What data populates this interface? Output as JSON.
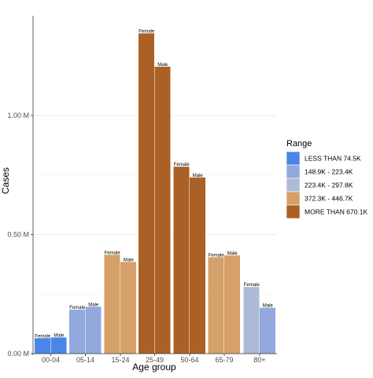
{
  "chart_data": {
    "type": "bar",
    "xlabel": "Age group",
    "ylabel": "Cases",
    "ylim": [
      0,
      1400000
    ],
    "grid": true,
    "legend_position": "right",
    "y_ticks": [
      {
        "value": 0,
        "label": "0.00 M"
      },
      {
        "value": 500000,
        "label": "0.50 M"
      },
      {
        "value": 1000000,
        "label": "1.00 M"
      }
    ],
    "categories": [
      "00-04",
      "05-14",
      "15-24",
      "25-49",
      "50-64",
      "65-79",
      "80+"
    ],
    "sex_labels": [
      "Female",
      "Male"
    ],
    "bars": [
      {
        "category": "00-04",
        "sex": "Female",
        "value": 65000,
        "range": "LESS THAN 74.5K"
      },
      {
        "category": "00-04",
        "sex": "Male",
        "value": 68000,
        "range": "LESS THAN 74.5K"
      },
      {
        "category": "05-14",
        "sex": "Female",
        "value": 185000,
        "range": "148.9K - 223.4K"
      },
      {
        "category": "05-14",
        "sex": "Male",
        "value": 197000,
        "range": "148.9K - 223.4K"
      },
      {
        "category": "15-24",
        "sex": "Female",
        "value": 415000,
        "range": "372.3K - 446.7K"
      },
      {
        "category": "15-24",
        "sex": "Male",
        "value": 385000,
        "range": "372.3K - 446.7K"
      },
      {
        "category": "25-49",
        "sex": "Female",
        "value": 1345000,
        "range": "MORE THAN 670.1K"
      },
      {
        "category": "25-49",
        "sex": "Male",
        "value": 1205000,
        "range": "MORE THAN 670.1K"
      },
      {
        "category": "50-64",
        "sex": "Female",
        "value": 785000,
        "range": "MORE THAN 670.1K"
      },
      {
        "category": "50-64",
        "sex": "Male",
        "value": 740000,
        "range": "MORE THAN 670.1K"
      },
      {
        "category": "65-79",
        "sex": "Female",
        "value": 405000,
        "range": "372.3K - 446.7K"
      },
      {
        "category": "65-79",
        "sex": "Male",
        "value": 413000,
        "range": "372.3K - 446.7K"
      },
      {
        "category": "80+",
        "sex": "Female",
        "value": 280000,
        "range": "223.4K - 297.8K"
      },
      {
        "category": "80+",
        "sex": "Male",
        "value": 193000,
        "range": "148.9K - 223.4K"
      }
    ],
    "legend": {
      "title": "Range",
      "items": [
        {
          "label": "LESS THAN 74.5K",
          "color": "#4a86e8"
        },
        {
          "label": "148.9K - 223.4K",
          "color": "#93a9dd"
        },
        {
          "label": "223.4K - 297.8K",
          "color": "#aebbd6"
        },
        {
          "label": "372.3K - 446.7K",
          "color": "#d6a06a"
        },
        {
          "label": "MORE THAN 670.1K",
          "color": "#ab6125"
        }
      ]
    }
  }
}
